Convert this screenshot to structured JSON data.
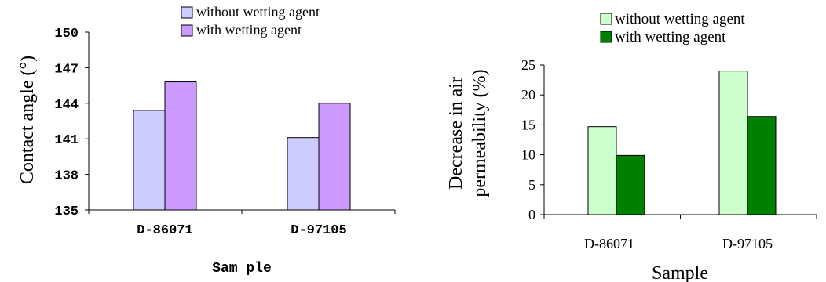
{
  "chart_data": [
    {
      "type": "bar",
      "categories": [
        "D-86071",
        "D-97105"
      ],
      "series": [
        {
          "name": "without wetting agent",
          "values": [
            143.4,
            141.1
          ],
          "color": "#ccccff"
        },
        {
          "name": "with wetting agent",
          "values": [
            145.8,
            144.0
          ],
          "color": "#cc99ff"
        }
      ],
      "xlabel": "Sam ple",
      "ylabel": "Contact angle (°)",
      "ylim": [
        135,
        150
      ],
      "yticks": [
        "135",
        "138",
        "141",
        "144",
        "147",
        "150"
      ],
      "legend": "top",
      "grid": false
    },
    {
      "type": "bar",
      "categories": [
        "D-86071",
        "D-97105"
      ],
      "series": [
        {
          "name": "without wetting agent",
          "values": [
            14.7,
            24.0
          ],
          "color": "#ccffcc"
        },
        {
          "name": "with wetting agent",
          "values": [
            9.9,
            16.4
          ],
          "color": "#008000"
        }
      ],
      "xlabel": "Sample",
      "ylabel": "Decrease in air permeability (%)",
      "ylabel_lines": [
        "Decrease in air",
        "permeability (%)"
      ],
      "ylim": [
        0,
        25
      ],
      "yticks": [
        "0",
        "5",
        "10",
        "15",
        "20",
        "25"
      ],
      "legend": "top",
      "grid": false
    }
  ]
}
